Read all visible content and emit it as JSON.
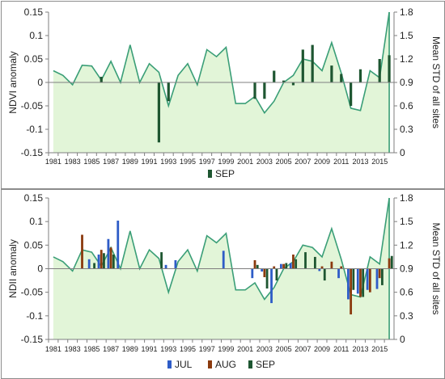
{
  "chart_data": [
    {
      "type": "bar",
      "panel": "top",
      "title": "",
      "x": [
        1981,
        1982,
        1983,
        1984,
        1985,
        1986,
        1987,
        1988,
        1989,
        1990,
        1991,
        1992,
        1993,
        1994,
        1995,
        1996,
        1997,
        1998,
        1999,
        2000,
        2001,
        2002,
        2003,
        2004,
        2005,
        2006,
        2007,
        2008,
        2009,
        2010,
        2011,
        2012,
        2013,
        2014,
        2015,
        2016
      ],
      "xticks": [
        "1981",
        "1983",
        "1985",
        "1987",
        "1989",
        "1991",
        "1993",
        "1995",
        "1997",
        "1999",
        "2001",
        "2003",
        "2005",
        "2007",
        "2009",
        "2011",
        "2013",
        "2015"
      ],
      "ylabel": "NDVI anomaly",
      "ylim": [
        -0.15,
        0.15
      ],
      "yticks": [
        "0.15",
        "0.1",
        "0.05",
        "0",
        "-0.05",
        "-0.1",
        "-0.15"
      ],
      "y2label": "Mean STD of all sites",
      "y2lim": [
        0,
        1.8
      ],
      "y2ticks": [
        "1.8",
        "1.5",
        "1.2",
        "0.9",
        "0.6",
        "0.3",
        "0"
      ],
      "series": [
        {
          "name": "SEP",
          "color": "#1e5631",
          "values": [
            null,
            null,
            null,
            null,
            null,
            0.012,
            null,
            null,
            null,
            null,
            null,
            -0.128,
            -0.04,
            null,
            null,
            null,
            null,
            null,
            null,
            null,
            null,
            -0.035,
            -0.035,
            0.025,
            0.004,
            -0.006,
            0.07,
            0.08,
            null,
            0.036,
            0.018,
            -0.05,
            0.028,
            null,
            0.05,
            0.058
          ]
        }
      ],
      "std_area": {
        "color_fill": "#e2f5d8",
        "color_line": "#3a9e77",
        "values": [
          1.05,
          0.99,
          0.87,
          1.12,
          1.11,
          0.93,
          1.17,
          0.9,
          1.38,
          0.9,
          1.14,
          1.03,
          0.6,
          0.99,
          1.14,
          0.87,
          1.32,
          1.23,
          1.35,
          0.63,
          0.63,
          0.72,
          0.51,
          0.66,
          0.9,
          0.99,
          1.2,
          1.17,
          1.05,
          1.41,
          1.02,
          0.57,
          0.54,
          1.05,
          0.96,
          1.8
        ]
      },
      "legend": [
        "SEP"
      ]
    },
    {
      "type": "bar",
      "panel": "bottom",
      "title": "",
      "x": [
        1981,
        1982,
        1983,
        1984,
        1985,
        1986,
        1987,
        1988,
        1989,
        1990,
        1991,
        1992,
        1993,
        1994,
        1995,
        1996,
        1997,
        1998,
        1999,
        2000,
        2001,
        2002,
        2003,
        2004,
        2005,
        2006,
        2007,
        2008,
        2009,
        2010,
        2011,
        2012,
        2013,
        2014,
        2015,
        2016
      ],
      "xticks": [
        "1981",
        "1983",
        "1985",
        "1987",
        "1989",
        "1991",
        "1993",
        "1995",
        "1997",
        "1999",
        "2001",
        "2003",
        "2005",
        "2007",
        "2009",
        "2011",
        "2013",
        "2015"
      ],
      "ylabel": "NDII anomaly",
      "ylim": [
        -0.15,
        0.15
      ],
      "yticks": [
        "0.15",
        "0.1",
        "0.05",
        "0",
        "-0.05",
        "-0.1",
        "-0.15"
      ],
      "y2label": "Mean STD of all sites",
      "y2lim": [
        0,
        1.8
      ],
      "y2ticks": [
        "1.8",
        "1.5",
        "1.2",
        "0.9",
        "0.6",
        "0.3",
        "0"
      ],
      "series": [
        {
          "name": "JUL",
          "color": "#2e5cc7",
          "values": [
            null,
            null,
            null,
            null,
            0.02,
            0.03,
            0.063,
            0.102,
            null,
            null,
            null,
            null,
            0.008,
            0.018,
            null,
            null,
            null,
            null,
            0.038,
            null,
            null,
            -0.02,
            -0.006,
            -0.073,
            0.01,
            0.012,
            null,
            null,
            -0.005,
            null,
            -0.02,
            -0.065,
            -0.053,
            -0.045,
            -0.043,
            null
          ]
        },
        {
          "name": "AUG",
          "color": "#8b3a0e",
          "values": [
            null,
            null,
            null,
            0.072,
            null,
            0.04,
            0.045,
            null,
            null,
            null,
            null,
            null,
            null,
            null,
            null,
            null,
            null,
            null,
            null,
            null,
            null,
            0.018,
            -0.018,
            0.005,
            0.01,
            0.03,
            null,
            null,
            0.005,
            0.015,
            0.005,
            -0.097,
            -0.06,
            -0.05,
            -0.02,
            0.022
          ]
        },
        {
          "name": "SEP",
          "color": "#1e5631",
          "values": [
            null,
            null,
            null,
            null,
            0.012,
            0.033,
            0.03,
            null,
            null,
            null,
            null,
            0.035,
            null,
            null,
            null,
            null,
            null,
            null,
            null,
            null,
            null,
            0.008,
            -0.042,
            -0.025,
            0.012,
            0.02,
            0.035,
            0.025,
            -0.025,
            null,
            null,
            -0.045,
            -0.06,
            null,
            -0.035,
            0.027
          ]
        }
      ],
      "std_area": {
        "color_fill": "#e2f5d8",
        "color_line": "#3a9e77",
        "values": [
          1.05,
          0.99,
          0.87,
          1.14,
          1.11,
          0.93,
          1.17,
          0.9,
          1.38,
          0.9,
          1.14,
          1.03,
          0.6,
          0.99,
          1.14,
          0.87,
          1.32,
          1.23,
          1.35,
          0.63,
          0.63,
          0.72,
          0.51,
          0.66,
          0.9,
          0.99,
          1.2,
          1.17,
          1.05,
          1.41,
          1.02,
          0.57,
          0.54,
          1.05,
          0.96,
          1.8
        ]
      },
      "legend": [
        "JUL",
        "AUG",
        "SEP"
      ]
    }
  ]
}
